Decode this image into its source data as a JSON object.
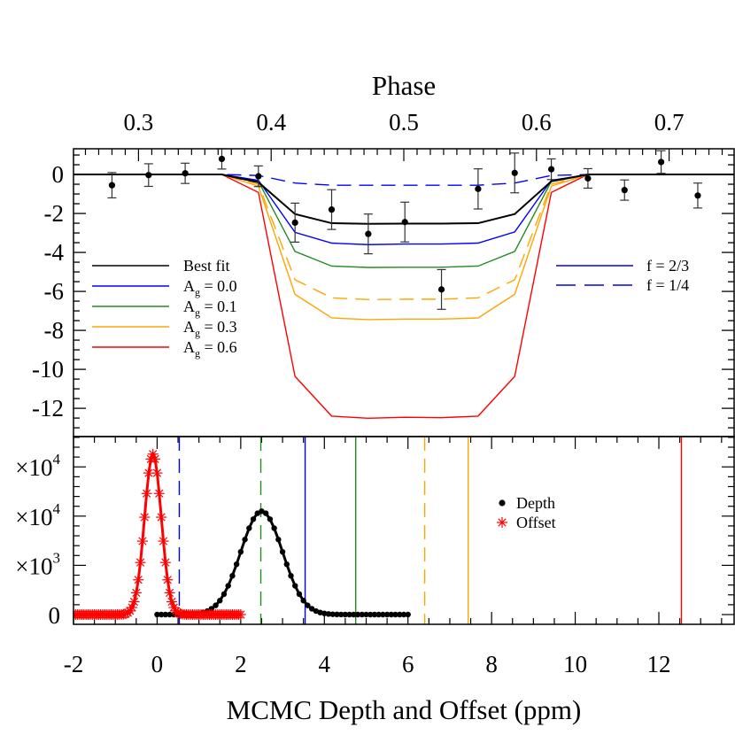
{
  "chart_data": [
    {
      "type": "line",
      "panel": "top",
      "title": "",
      "xlabel": "Phase",
      "x_axis_position": "top",
      "xlim": [
        0.251,
        0.749
      ],
      "ylim": [
        -13.45,
        1.32
      ],
      "xticks": [
        0.3,
        0.4,
        0.5,
        0.6,
        0.7
      ],
      "xtick_labels": [
        "0.3",
        "0.4",
        "0.5",
        "0.6",
        "0.7"
      ],
      "yticks": [
        0,
        -2,
        -4,
        -6,
        -8,
        -10,
        -12
      ],
      "ytick_labels": [
        "0",
        "-2",
        "-4",
        "-6",
        "-8",
        "-10",
        "-12"
      ],
      "grid": false,
      "data_points": {
        "x": [
          0.28,
          0.3076,
          0.3352,
          0.3628,
          0.3904,
          0.418,
          0.4456,
          0.4732,
          0.5008,
          0.5284,
          0.556,
          0.5836,
          0.6112,
          0.6388,
          0.6664,
          0.694,
          0.7216
        ],
        "y": [
          -0.55,
          -0.03,
          0.06,
          0.8,
          -0.09,
          -2.47,
          -1.8,
          -3.05,
          -2.44,
          -5.9,
          -0.74,
          0.08,
          0.27,
          -0.2,
          -0.8,
          0.64,
          -1.08
        ],
        "yerr": [
          0.65,
          0.58,
          0.52,
          0.52,
          0.53,
          1.0,
          1.02,
          1.02,
          1.02,
          1.02,
          1.03,
          1.02,
          0.53,
          0.5,
          0.52,
          0.58,
          0.64
        ],
        "color": "#000000"
      },
      "model_x": [
        0.25,
        0.3628,
        0.3904,
        0.418,
        0.4456,
        0.4732,
        0.5008,
        0.5284,
        0.556,
        0.5836,
        0.6112,
        0.6388,
        0.75
      ],
      "series": [
        {
          "name": "Ag = 0.6",
          "color": "#ff0000",
          "dashed": false,
          "values": [
            0,
            0,
            -0.92,
            -10.36,
            -12.4,
            -12.51,
            -12.46,
            -12.48,
            -12.4,
            -10.36,
            -0.92,
            0,
            0
          ]
        },
        {
          "name": "Ag = 0.3",
          "color": "#ffa500",
          "dashed": false,
          "values": [
            0,
            0,
            -0.6,
            -6.15,
            -7.36,
            -7.45,
            -7.42,
            -7.42,
            -7.36,
            -6.15,
            -0.6,
            0,
            0
          ]
        },
        {
          "name": "Ag = 0.3, f = 1/4",
          "color": "#ffa500",
          "dashed": true,
          "values": [
            0,
            0,
            -0.5,
            -5.4,
            -6.33,
            -6.42,
            -6.4,
            -6.4,
            -6.33,
            -5.4,
            -0.5,
            0,
            0
          ]
        },
        {
          "name": "Ag = 0.1",
          "color": "#228b22",
          "dashed": false,
          "values": [
            0,
            0,
            -0.35,
            -3.95,
            -4.7,
            -4.77,
            -4.76,
            -4.76,
            -4.7,
            -3.95,
            -0.35,
            0,
            0
          ]
        },
        {
          "name": "Ag = 0.1, f = 1/4",
          "color": "#228b22",
          "dashed": true,
          "values": [
            0,
            0,
            -0.4,
            -2.03,
            -2.5,
            -2.53,
            -2.52,
            -2.52,
            -2.5,
            -2.03,
            -0.35,
            0,
            0
          ]
        },
        {
          "name": "Ag = 0.0",
          "color": "#0000ff",
          "dashed": false,
          "values": [
            0,
            0,
            -0.3,
            -2.97,
            -3.52,
            -3.6,
            -3.57,
            -3.57,
            -3.52,
            -2.95,
            -0.3,
            0,
            0
          ]
        },
        {
          "name": "Ag = 0.0, f = 1/4",
          "color": "#0000ff",
          "dashed": true,
          "values": [
            0,
            0,
            -0.05,
            -0.44,
            -0.55,
            -0.55,
            -0.55,
            -0.55,
            -0.55,
            -0.44,
            -0.05,
            0,
            0
          ]
        },
        {
          "name": "Best fit",
          "color": "#000000",
          "dashed": false,
          "values": [
            0,
            0,
            -0.4,
            -2.03,
            -2.5,
            -2.53,
            -2.52,
            -2.52,
            -2.5,
            -2.03,
            -0.35,
            0,
            0
          ]
        }
      ],
      "legend_left": {
        "placement": "center-left",
        "entries": [
          {
            "main": "Best fit",
            "sub": "",
            "rest": "",
            "color": "#000000",
            "dashed": false
          },
          {
            "main": "A",
            "sub": "g",
            "rest": " = 0.0",
            "color": "#0000ff",
            "dashed": false
          },
          {
            "main": "A",
            "sub": "g",
            "rest": " = 0.1",
            "color": "#228b22",
            "dashed": false
          },
          {
            "main": "A",
            "sub": "g",
            "rest": " = 0.3",
            "color": "#ffa500",
            "dashed": false
          },
          {
            "main": "A",
            "sub": "g",
            "rest": " = 0.6",
            "color": "#ff0000",
            "dashed": false
          }
        ]
      },
      "legend_right": {
        "placement": "center-right",
        "entries": [
          {
            "main": "f = 2/3",
            "sub": "",
            "rest": "",
            "color": "#0000ff",
            "dashed": false
          },
          {
            "main": "f = 1/4",
            "sub": "",
            "rest": "",
            "color": "#0000ff",
            "dashed": true
          }
        ]
      }
    },
    {
      "type": "scatter",
      "panel": "bottom",
      "title": "",
      "xlabel": "MCMC Depth and Offset (ppm)",
      "xlim": [
        -2,
        13.8
      ],
      "ylim": [
        -990,
        18080
      ],
      "xticks": [
        -2,
        0,
        2,
        4,
        6,
        8,
        10,
        12
      ],
      "xtick_labels": [
        "-2",
        "0",
        "2",
        "4",
        "6",
        "8",
        "10",
        "12"
      ],
      "yticks": [
        15000,
        10000,
        5000,
        0
      ],
      "ytick_labels": [
        {
          "base": "×10",
          "exp": "4"
        },
        {
          "base": "×10",
          "exp": "4"
        },
        {
          "base": "×10",
          "exp": "3"
        },
        {
          "base": "0",
          "exp": ""
        }
      ],
      "grid": false,
      "series": [
        {
          "name": "Depth",
          "marker": "filled-circle",
          "color": "#000000",
          "x_start": 0,
          "x_step": 0.1,
          "values": [
            0,
            0,
            0,
            0,
            0,
            0,
            8,
            16,
            32,
            62,
            117,
            208,
            357,
            589,
            933,
            1420,
            2080,
            2920,
            3940,
            5110,
            6370,
            7620,
            8770,
            9690,
            10290,
            10500,
            10290,
            9690,
            8770,
            7620,
            6370,
            5110,
            3940,
            2920,
            2080,
            1420,
            933,
            589,
            357,
            208,
            117,
            62,
            32,
            16,
            8,
            0,
            0,
            0,
            0,
            0,
            0,
            0,
            0,
            0,
            0,
            0,
            0,
            0,
            0,
            0,
            0
          ]
        },
        {
          "name": "Offset",
          "marker": "asterisk",
          "color": "#ff0000",
          "x_start": -2,
          "x_step": 0.05,
          "values": [
            0,
            0,
            0,
            0,
            0,
            0,
            0,
            0,
            0,
            0,
            0,
            0,
            0,
            0,
            0,
            0,
            0,
            0,
            0,
            0,
            0,
            0,
            6,
            15,
            36,
            83,
            181,
            372,
            716,
            1300,
            2210,
            3530,
            5290,
            7460,
            9890,
            12300,
            14380,
            15800,
            16300,
            15800,
            14380,
            12300,
            9890,
            7460,
            5290,
            3530,
            2210,
            1300,
            716,
            372,
            181,
            83,
            36,
            15,
            6,
            0,
            0,
            0,
            0,
            0,
            0,
            0,
            0,
            0,
            0,
            0,
            0,
            0,
            0,
            0,
            0,
            0,
            0,
            0,
            0,
            0,
            0,
            0,
            0,
            0,
            0
          ]
        }
      ],
      "vertical_lines": [
        {
          "x": 0.53,
          "color": "#0000ff",
          "dashed": true
        },
        {
          "x": 2.48,
          "color": "#228b22",
          "dashed": true
        },
        {
          "x": 3.54,
          "color": "#0000ff",
          "dashed": false
        },
        {
          "x": 4.75,
          "color": "#228b22",
          "dashed": false
        },
        {
          "x": 6.4,
          "color": "#ffa500",
          "dashed": true
        },
        {
          "x": 7.44,
          "color": "#ffa500",
          "dashed": false
        },
        {
          "x": 12.54,
          "color": "#ff0000",
          "dashed": false
        }
      ],
      "legend": {
        "placement": "center-right",
        "entries": [
          {
            "label": "Depth",
            "marker": "filled-circle",
            "color": "#000000"
          },
          {
            "label": "Offset",
            "marker": "asterisk",
            "color": "#ff0000"
          }
        ]
      }
    }
  ]
}
